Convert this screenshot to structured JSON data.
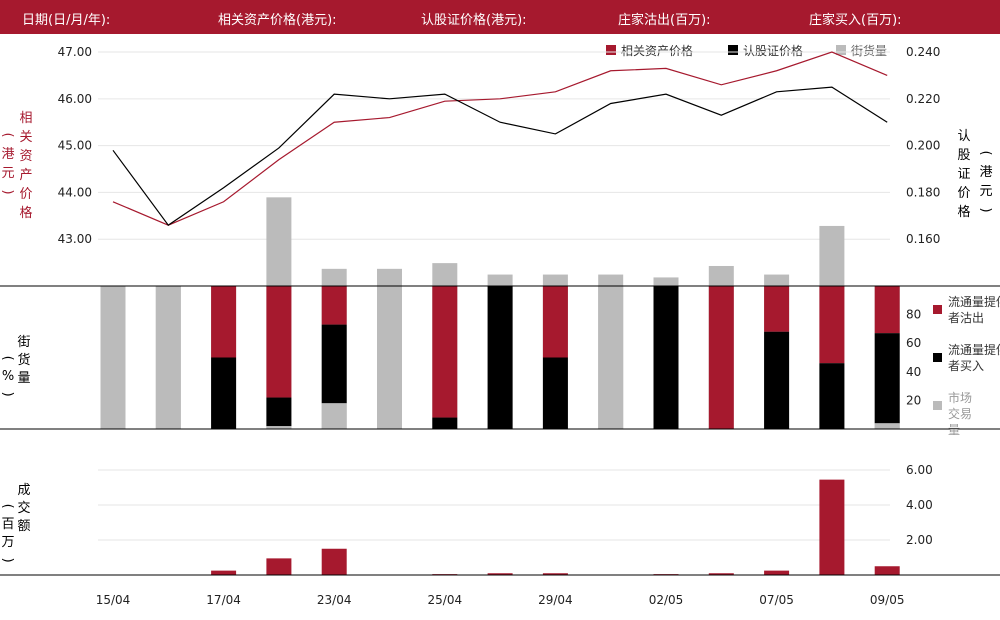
{
  "header": {
    "date_label": "日期(日/月/年):",
    "underlying_label": "相关资产价格(港元):",
    "warrant_label": "认股证价格(港元):",
    "mm_sold_label": "庄家沽出(百万):",
    "mm_bought_label": "庄家买入(百万):"
  },
  "colors": {
    "crimson": "#a6192e",
    "black": "#000000",
    "gray": "#bbbbbb",
    "grid": "#e6e6e6"
  },
  "chart_data": [
    {
      "type": "line",
      "legend": [
        "相关资产价格",
        "认股证价格",
        "街货量"
      ],
      "ylabel_left": "相关资产价格(港元)",
      "ylabel_right": "认股证价格(港元)",
      "left_ticks": [
        "47.00",
        "46.00",
        "45.00",
        "44.00",
        "43.00"
      ],
      "right_ticks": [
        "0.240",
        "0.220",
        "0.200",
        "0.180",
        "0.160"
      ],
      "ylim_left": [
        42,
        47.3
      ],
      "ylim_right": [
        0.14,
        0.246
      ],
      "series": [
        {
          "name": "相关资产价格",
          "axis": "left",
          "values": [
            43.8,
            43.3,
            43.8,
            44.7,
            45.5,
            45.6,
            45.95,
            46.0,
            46.15,
            46.6,
            46.65,
            46.3,
            46.6,
            47.0,
            46.5
          ]
        },
        {
          "name": "认股证价格",
          "axis": "right",
          "values": [
            0.198,
            0.166,
            0.182,
            0.199,
            0.222,
            0.22,
            0.222,
            0.21,
            0.205,
            0.218,
            0.222,
            0.213,
            0.223,
            0.225,
            0.21
          ]
        }
      ],
      "outstanding_pct": [
        100,
        100,
        100,
        162,
        112,
        112,
        116,
        108,
        108,
        108,
        106,
        114,
        108,
        142,
        100
      ]
    },
    {
      "type": "bar",
      "ylabel": "街货量(%)",
      "y_ticks": [
        "80",
        "60",
        "40",
        "20"
      ],
      "ylim": [
        0,
        100
      ],
      "legend": [
        "流通量提供者沽出",
        "流通量提供者买入",
        "市场交易量"
      ],
      "stacks": [
        {
          "sold": 0,
          "bought": 0,
          "market": 100
        },
        {
          "sold": 0,
          "bought": 0,
          "market": 100
        },
        {
          "sold": 50,
          "bought": 50,
          "market": 0
        },
        {
          "sold": 78,
          "bought": 20,
          "market": 2
        },
        {
          "sold": 27,
          "bought": 55,
          "market": 18
        },
        {
          "sold": 0,
          "bought": 0,
          "market": 100
        },
        {
          "sold": 92,
          "bought": 8,
          "market": 0
        },
        {
          "sold": 0,
          "bought": 100,
          "market": 0
        },
        {
          "sold": 50,
          "bought": 50,
          "market": 0
        },
        {
          "sold": 0,
          "bought": 0,
          "market": 100
        },
        {
          "sold": 0,
          "bought": 100,
          "market": 0
        },
        {
          "sold": 100,
          "bought": 0,
          "market": 0
        },
        {
          "sold": 32,
          "bought": 68,
          "market": 0
        },
        {
          "sold": 54,
          "bought": 46,
          "market": 0
        },
        {
          "sold": 33,
          "bought": 63,
          "market": 4
        }
      ]
    },
    {
      "type": "bar",
      "ylabel": "成交额(百万)",
      "y_ticks": [
        "6.00",
        "4.00",
        "2.00"
      ],
      "ylim": [
        0,
        7.2
      ],
      "values": [
        0,
        0,
        0.25,
        0.95,
        1.5,
        0,
        0.05,
        0.1,
        0.1,
        0,
        0.05,
        0.1,
        0.25,
        5.45,
        0.5
      ]
    }
  ],
  "x_labels": [
    {
      "index": 0,
      "label": "15/04"
    },
    {
      "index": 2,
      "label": "17/04"
    },
    {
      "index": 4,
      "label": "23/04"
    },
    {
      "index": 6,
      "label": "25/04"
    },
    {
      "index": 8,
      "label": "29/04"
    },
    {
      "index": 10,
      "label": "02/05"
    },
    {
      "index": 12,
      "label": "07/05"
    },
    {
      "index": 14,
      "label": "09/05"
    }
  ]
}
